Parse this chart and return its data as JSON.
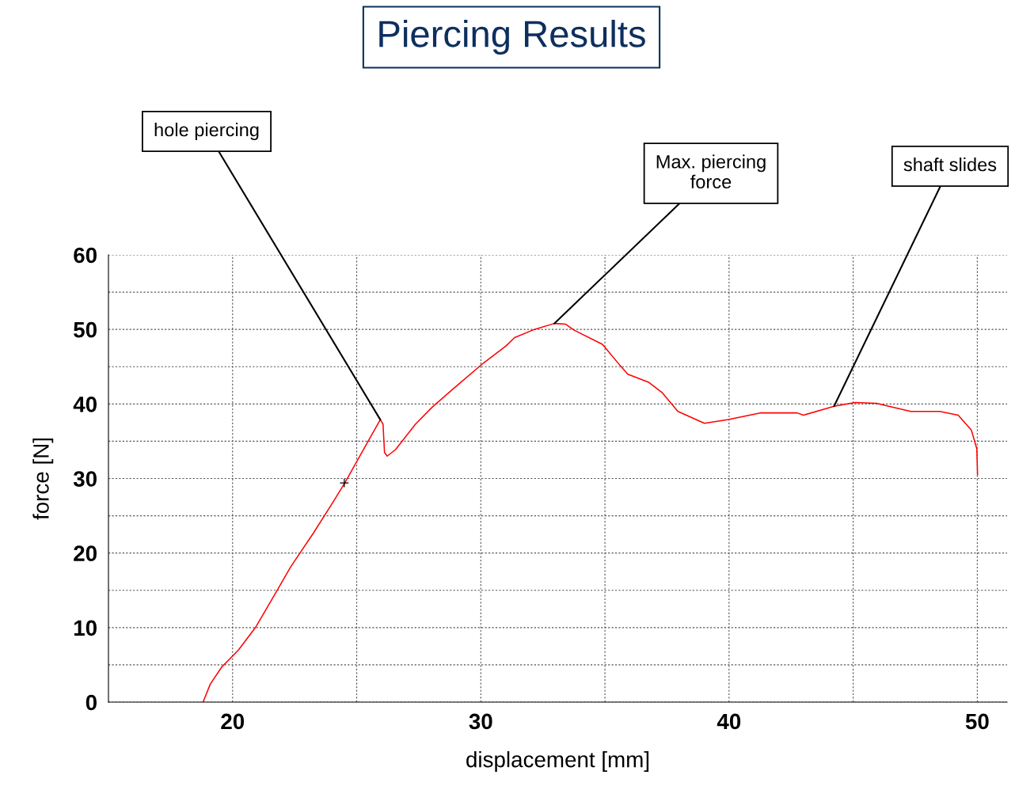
{
  "chart_data": {
    "type": "line",
    "title": "Piercing Results",
    "xlabel": "displacement [mm]",
    "ylabel": "force [N]",
    "xlim": [
      15,
      51.2
    ],
    "ylim": [
      0,
      60
    ],
    "xticks": [
      20,
      {
        "value": 25,
        "label": null
      },
      30,
      {
        "value": 35,
        "label": null
      },
      40,
      {
        "value": 45,
        "label": null
      },
      50
    ],
    "yticks": [
      0,
      {
        "value": 5,
        "label": null
      },
      10,
      {
        "value": 15,
        "label": null
      },
      20,
      {
        "value": 25,
        "label": null
      },
      30,
      {
        "value": 35,
        "label": null
      },
      40,
      {
        "value": 45,
        "label": null
      },
      50,
      {
        "value": 55,
        "label": null
      },
      60
    ],
    "grid": true,
    "line_style": "solid",
    "marker": "none",
    "series": [
      {
        "color": "#ff0000",
        "x": [
          18.81,
          19.1,
          19.56,
          20.24,
          20.92,
          21.78,
          22.35,
          23.26,
          24.06,
          24.52,
          25.09,
          25.95,
          26.06,
          26.12,
          26.23,
          26.57,
          27.37,
          28.05,
          28.91,
          30.11,
          31.02,
          31.36,
          32.16,
          32.96,
          33.42,
          33.76,
          34.9,
          35.6,
          35.92,
          36.77,
          37.31,
          37.94,
          39.01,
          39.97,
          41.25,
          42.74,
          43.0,
          44.23,
          45.08,
          45.93,
          47.32,
          48.49,
          49.23,
          49.76,
          49.98,
          50.01
        ],
        "values": [
          0,
          2.4,
          4.7,
          7.0,
          10.0,
          14.9,
          18.2,
          22.7,
          26.9,
          29.4,
          32.8,
          37.9,
          37.3,
          33.5,
          33.0,
          33.9,
          37.3,
          39.6,
          42.1,
          45.5,
          47.8,
          48.9,
          50.0,
          50.8,
          50.7,
          49.9,
          48.0,
          45.2,
          44.0,
          42.9,
          41.5,
          39.0,
          37.4,
          37.9,
          38.8,
          38.8,
          38.5,
          39.7,
          40.2,
          40.1,
          39.0,
          39.0,
          38.5,
          36.5,
          34.0,
          30.5
        ]
      },
      {
        "type": "scatter",
        "color": "#000000",
        "marker": "cross",
        "x": [
          24.5
        ],
        "values": [
          29.4
        ]
      }
    ],
    "annotations": [
      {
        "text": "hole piercing",
        "x": 25.95,
        "y": 37.9
      },
      {
        "text": "Max. piercing\nforce",
        "x": 32.96,
        "y": 50.8
      },
      {
        "text": "shaft slides",
        "x": 44.23,
        "y": 39.7
      }
    ],
    "legend": false
  }
}
